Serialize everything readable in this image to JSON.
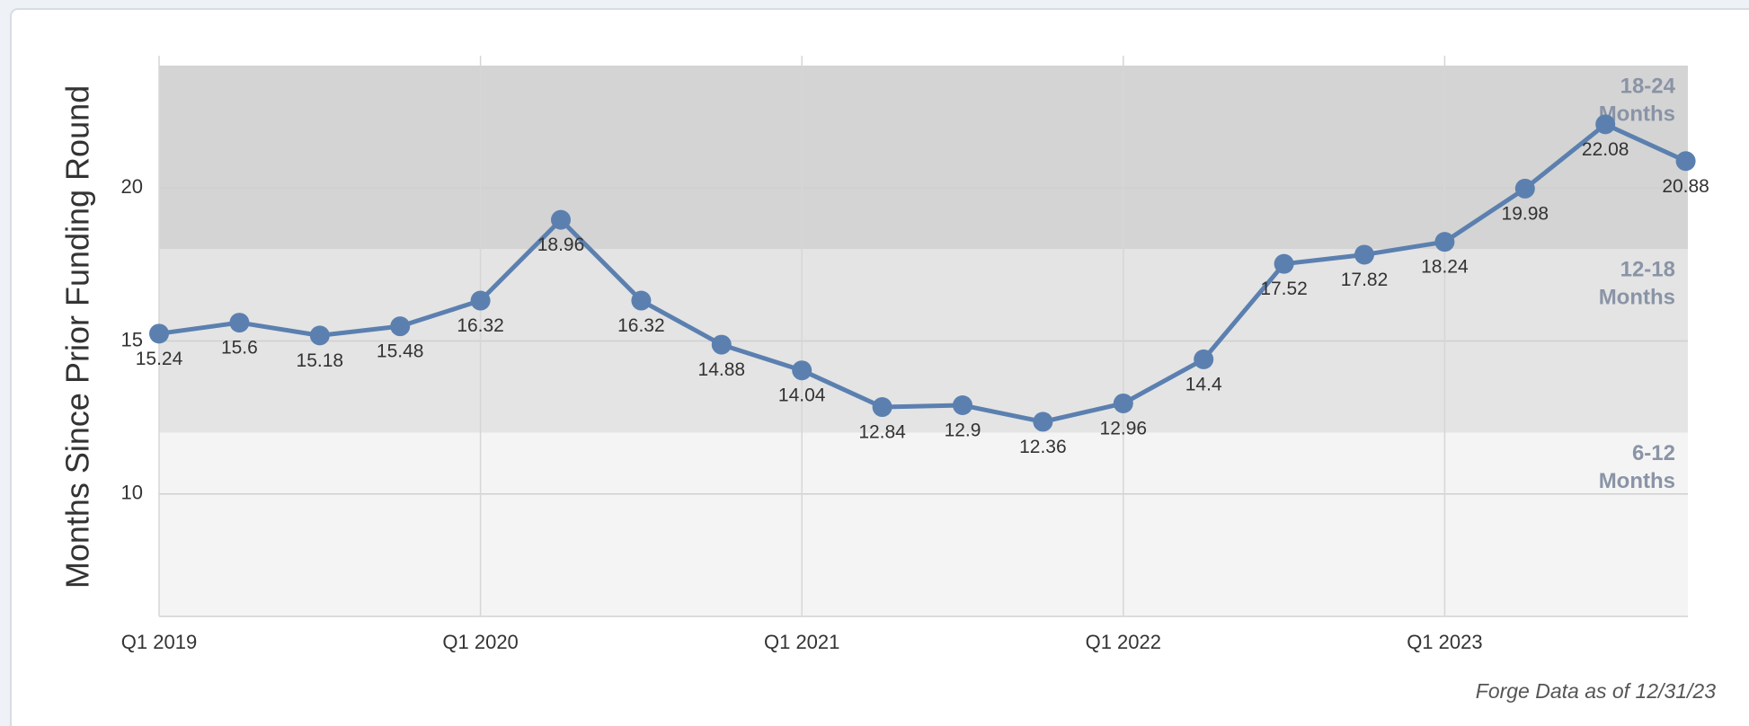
{
  "chart_data": {
    "type": "line",
    "y_label": "Months Since Prior Funding Round",
    "note": "Forge Data as of 12/31/23",
    "categories": [
      "Q1 2019",
      null,
      null,
      null,
      "Q1 2020",
      null,
      null,
      null,
      "Q1 2021",
      null,
      null,
      null,
      "Q1 2022",
      null,
      null,
      null,
      "Q1 2023",
      null,
      null,
      null
    ],
    "series": [
      {
        "name": "Months Since Prior Funding Round",
        "color": "#5b80b0",
        "values": [
          15.24,
          15.6,
          15.18,
          15.48,
          16.32,
          18.96,
          16.32,
          14.88,
          14.04,
          12.84,
          12.9,
          12.36,
          12.96,
          14.4,
          17.52,
          17.82,
          18.24,
          19.98,
          22.08,
          20.88
        ]
      }
    ],
    "ylim": [
      6,
      24
    ],
    "yticks": [
      10,
      15,
      20
    ],
    "grid": true,
    "bands": [
      {
        "from": 18,
        "to": 24,
        "color": "#d4d4d4",
        "lines": [
          "18-24",
          "Months"
        ]
      },
      {
        "from": 12,
        "to": 18,
        "color": "#e4e4e4",
        "lines": [
          "12-18",
          "Months"
        ]
      },
      {
        "from": 6,
        "to": 12,
        "color": "#f4f4f4",
        "lines": [
          "6-12",
          "Months"
        ]
      }
    ]
  }
}
